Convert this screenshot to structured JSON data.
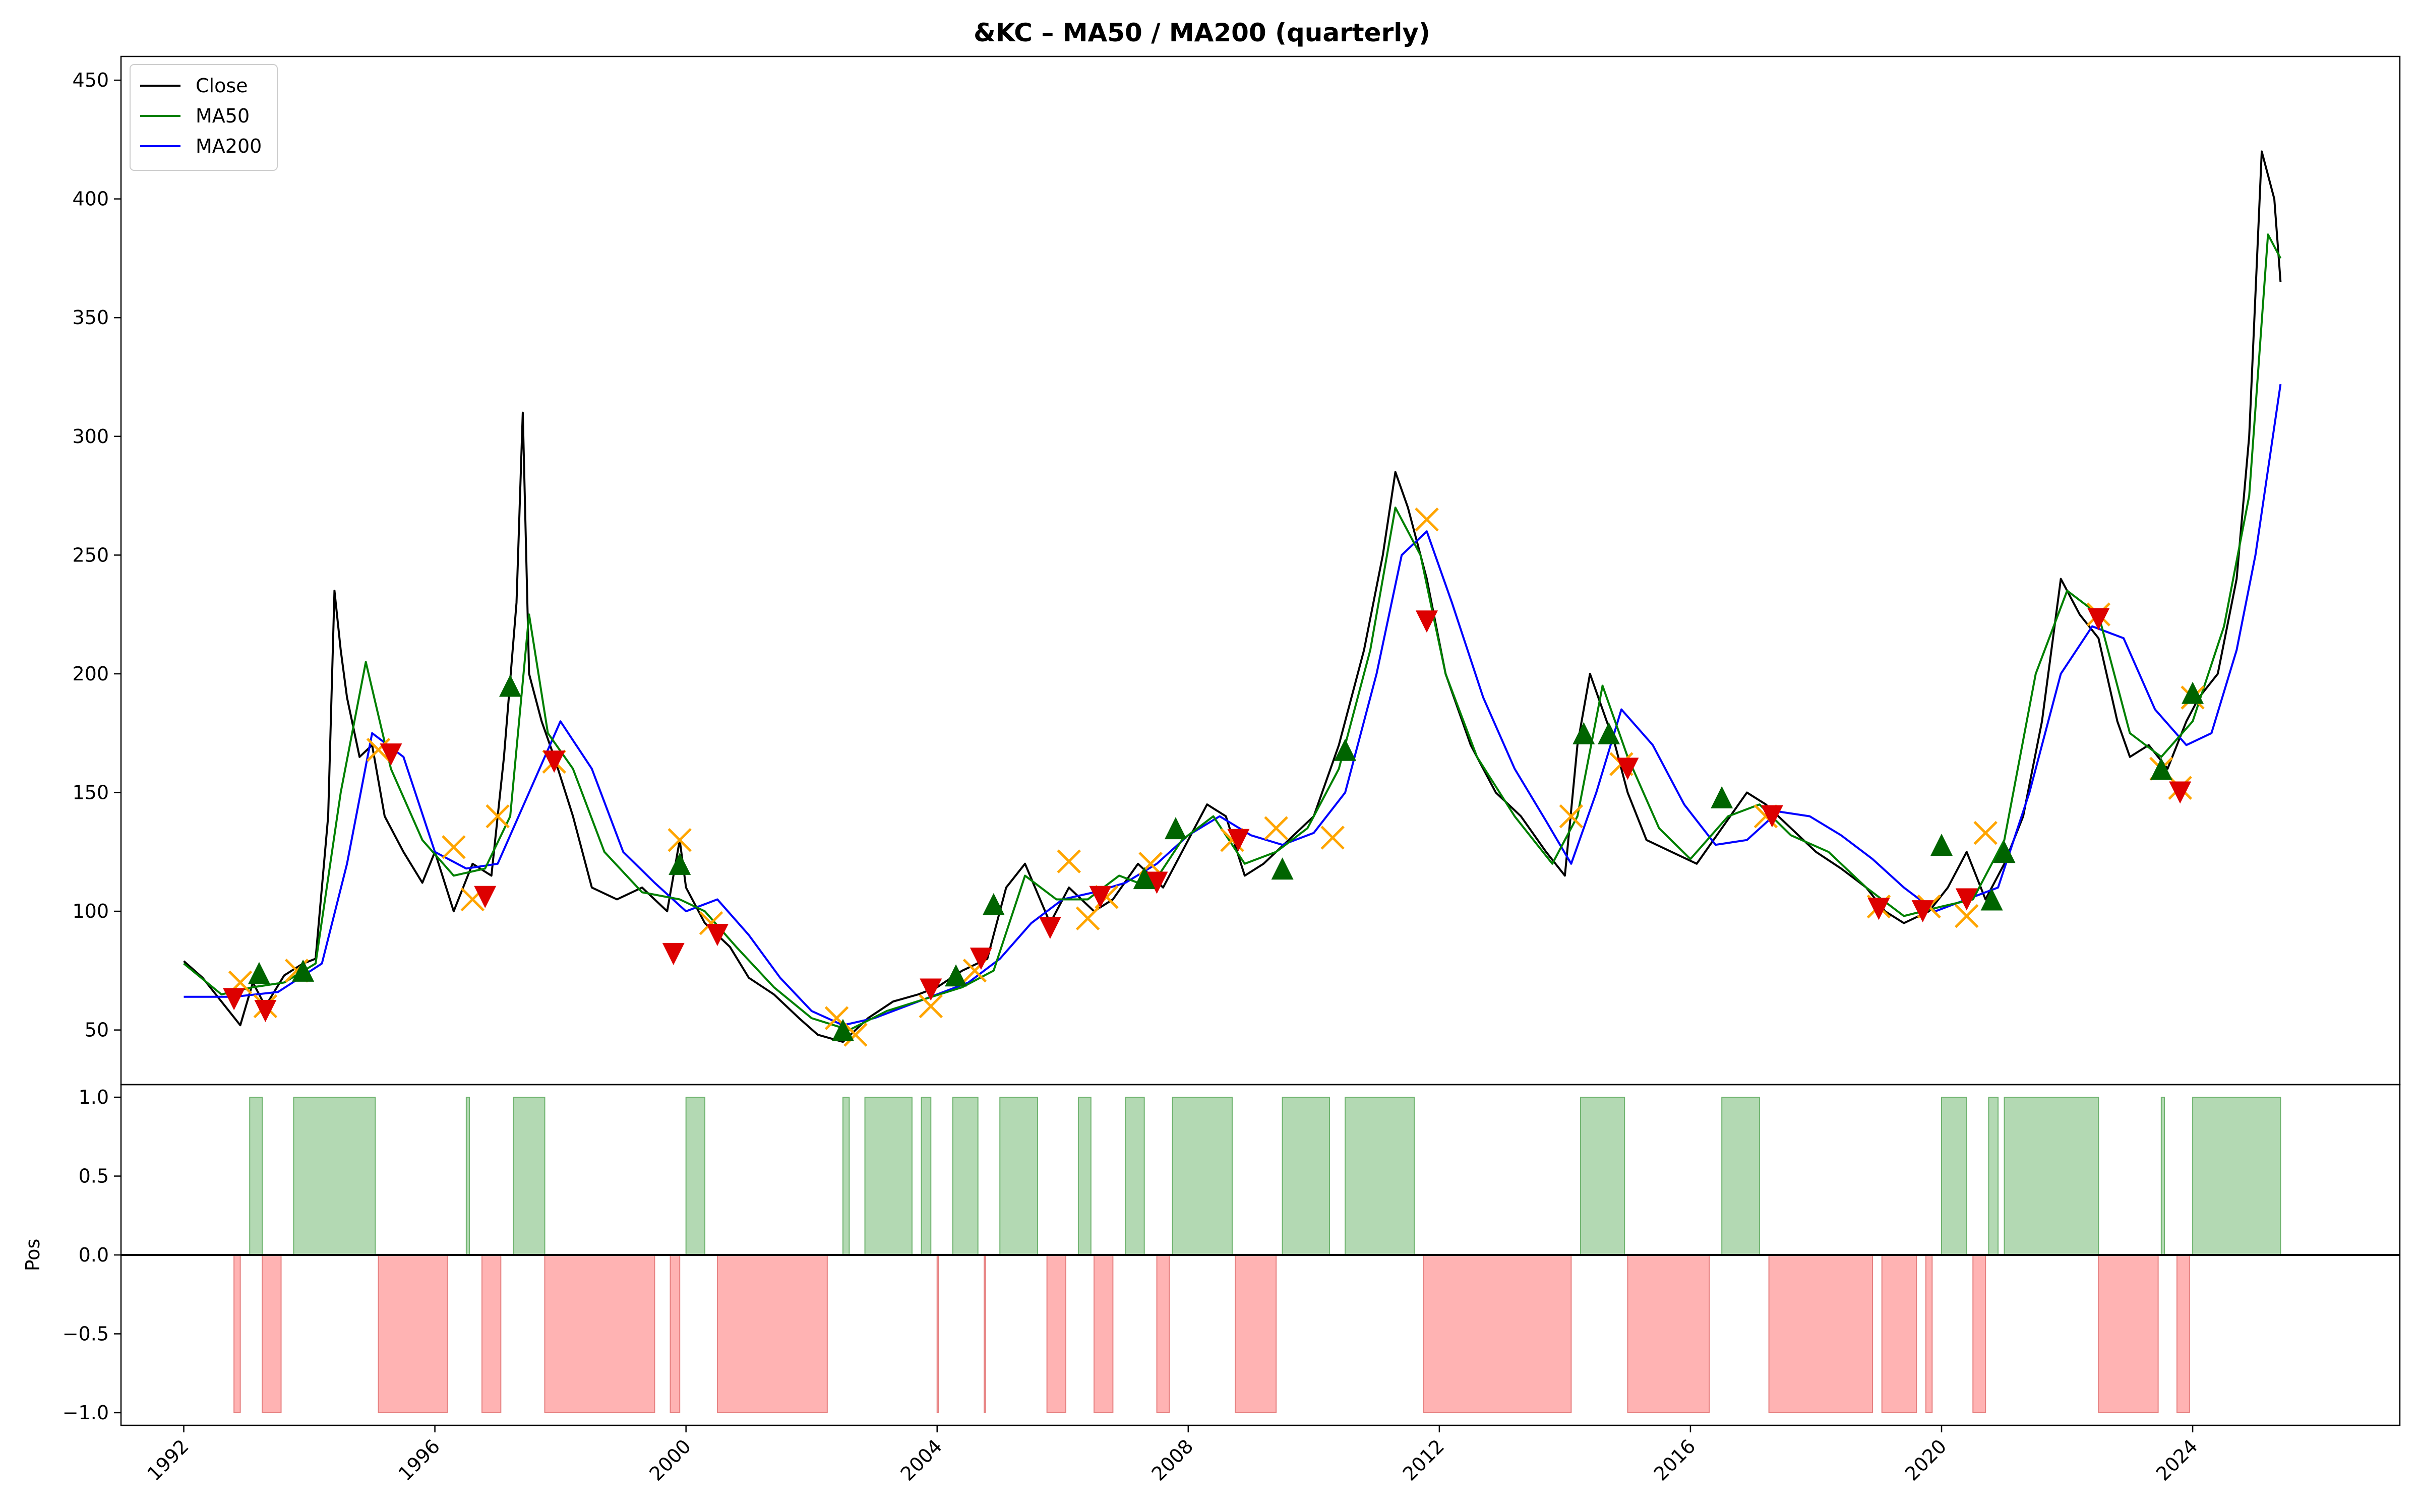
{
  "chart_data": [
    {
      "type": "line",
      "title": "&KC – MA50 / MA200 (quarterly)",
      "xlabel": "",
      "ylabel": "",
      "xlim": [
        1991.0,
        2027.3
      ],
      "ylim": [
        27,
        460
      ],
      "yticks": [
        50,
        100,
        150,
        200,
        250,
        300,
        350,
        400,
        450
      ],
      "xticks": [
        1992,
        1996,
        2000,
        2004,
        2008,
        2012,
        2016,
        2020,
        2024
      ],
      "legend": {
        "placement": "top-left",
        "entries": [
          "Close",
          "MA50",
          "MA200"
        ]
      },
      "colors": {
        "close": "#000000",
        "ma50": "#008000",
        "ma200": "#0000ff",
        "buy": "#006400",
        "sell": "#dd0000",
        "exit": "#ffa500"
      },
      "series": [
        {
          "name": "Close",
          "x": [
            1992.0,
            1992.3,
            1992.6,
            1992.9,
            1993.1,
            1993.3,
            1993.6,
            1993.9,
            1994.1,
            1994.3,
            1994.4,
            1994.5,
            1994.6,
            1994.8,
            1995.0,
            1995.2,
            1995.5,
            1995.8,
            1996.0,
            1996.3,
            1996.6,
            1996.9,
            1997.1,
            1997.3,
            1997.4,
            1997.5,
            1997.7,
            1997.9,
            1998.2,
            1998.5,
            1998.9,
            1999.3,
            1999.7,
            1999.9,
            2000.0,
            2000.3,
            2000.7,
            2001.0,
            2001.4,
            2001.8,
            2002.1,
            2002.5,
            2002.9,
            2003.3,
            2003.7,
            2004.0,
            2004.4,
            2004.8,
            2005.1,
            2005.4,
            2005.8,
            2006.1,
            2006.5,
            2006.8,
            2007.2,
            2007.6,
            2008.0,
            2008.3,
            2008.6,
            2008.9,
            2009.2,
            2009.6,
            2010.0,
            2010.4,
            2010.8,
            2011.1,
            2011.3,
            2011.5,
            2011.8,
            2012.1,
            2012.5,
            2012.9,
            2013.3,
            2013.7,
            2014.0,
            2014.2,
            2014.4,
            2014.6,
            2014.8,
            2015.0,
            2015.3,
            2015.7,
            2016.1,
            2016.5,
            2016.9,
            2017.2,
            2017.6,
            2018.0,
            2018.4,
            2018.8,
            2019.1,
            2019.4,
            2019.8,
            2020.1,
            2020.4,
            2020.7,
            2021.0,
            2021.3,
            2021.6,
            2021.9,
            2022.2,
            2022.5,
            2022.8,
            2023.0,
            2023.3,
            2023.6,
            2023.9,
            2024.1,
            2024.4,
            2024.7,
            2024.9,
            2025.1,
            2025.3,
            2025.4
          ],
          "y": [
            79,
            72,
            62,
            52,
            70,
            60,
            73,
            78,
            80,
            140,
            235,
            210,
            190,
            165,
            170,
            140,
            125,
            112,
            125,
            100,
            120,
            115,
            165,
            230,
            310,
            200,
            180,
            165,
            140,
            110,
            105,
            110,
            100,
            130,
            110,
            95,
            85,
            72,
            65,
            55,
            48,
            45,
            55,
            62,
            65,
            68,
            75,
            80,
            110,
            120,
            95,
            110,
            100,
            105,
            120,
            110,
            130,
            145,
            140,
            115,
            120,
            130,
            140,
            170,
            210,
            250,
            285,
            270,
            240,
            200,
            170,
            150,
            140,
            125,
            115,
            170,
            200,
            185,
            170,
            150,
            130,
            125,
            120,
            135,
            150,
            145,
            135,
            125,
            118,
            110,
            100,
            95,
            100,
            110,
            125,
            105,
            120,
            140,
            180,
            240,
            225,
            215,
            180,
            165,
            170,
            160,
            180,
            190,
            200,
            240,
            300,
            420,
            400,
            365
          ]
        },
        {
          "name": "MA50",
          "x": [
            1992.0,
            1992.6,
            1993.1,
            1993.6,
            1994.1,
            1994.5,
            1994.9,
            1995.3,
            1995.8,
            1996.3,
            1996.8,
            1997.2,
            1997.5,
            1997.8,
            1998.2,
            1998.7,
            1999.3,
            1999.9,
            2000.3,
            2000.8,
            2001.4,
            2002.0,
            2002.6,
            2003.2,
            2003.8,
            2004.4,
            2004.9,
            2005.4,
            2005.9,
            2006.4,
            2006.9,
            2007.4,
            2007.9,
            2008.4,
            2008.9,
            2009.4,
            2009.9,
            2010.4,
            2010.9,
            2011.3,
            2011.7,
            2012.1,
            2012.6,
            2013.2,
            2013.8,
            2014.2,
            2014.6,
            2015.0,
            2015.5,
            2016.0,
            2016.6,
            2017.1,
            2017.6,
            2018.2,
            2018.8,
            2019.4,
            2020.0,
            2020.5,
            2021.0,
            2021.5,
            2022.0,
            2022.5,
            2023.0,
            2023.5,
            2024.0,
            2024.5,
            2024.9,
            2025.2,
            2025.4
          ],
          "y": [
            78,
            65,
            68,
            70,
            78,
            150,
            205,
            160,
            130,
            115,
            118,
            140,
            225,
            175,
            160,
            125,
            108,
            105,
            100,
            85,
            68,
            55,
            50,
            58,
            63,
            68,
            75,
            115,
            105,
            105,
            115,
            110,
            130,
            140,
            120,
            125,
            135,
            160,
            210,
            270,
            250,
            200,
            165,
            140,
            120,
            140,
            195,
            165,
            135,
            122,
            140,
            145,
            132,
            125,
            110,
            98,
            102,
            105,
            130,
            200,
            235,
            225,
            175,
            165,
            180,
            220,
            275,
            385,
            375
          ]
        },
        {
          "name": "MA200",
          "x": [
            1992.0,
            1992.8,
            1993.5,
            1994.2,
            1994.6,
            1995.0,
            1995.5,
            1996.0,
            1996.5,
            1997.0,
            1997.5,
            1998.0,
            1998.5,
            1999.0,
            1999.5,
            2000.0,
            2000.5,
            2001.0,
            2001.5,
            2002.0,
            2002.5,
            2003.0,
            2003.5,
            2004.0,
            2004.5,
            2005.0,
            2005.5,
            2006.0,
            2006.5,
            2007.0,
            2007.5,
            2008.0,
            2008.5,
            2009.0,
            2009.5,
            2010.0,
            2010.5,
            2011.0,
            2011.4,
            2011.8,
            2012.2,
            2012.7,
            2013.2,
            2013.7,
            2014.1,
            2014.5,
            2014.9,
            2015.4,
            2015.9,
            2016.4,
            2016.9,
            2017.4,
            2017.9,
            2018.4,
            2018.9,
            2019.4,
            2019.9,
            2020.4,
            2020.9,
            2021.4,
            2021.9,
            2022.4,
            2022.9,
            2023.4,
            2023.9,
            2024.3,
            2024.7,
            2025.0,
            2025.4
          ],
          "y": [
            64,
            64,
            66,
            78,
            120,
            175,
            165,
            125,
            118,
            120,
            150,
            180,
            160,
            125,
            112,
            100,
            105,
            90,
            72,
            58,
            52,
            55,
            60,
            65,
            70,
            80,
            95,
            105,
            108,
            112,
            120,
            132,
            140,
            132,
            128,
            133,
            150,
            200,
            250,
            260,
            230,
            190,
            160,
            138,
            120,
            150,
            185,
            170,
            145,
            128,
            130,
            142,
            140,
            132,
            122,
            110,
            100,
            105,
            110,
            150,
            200,
            220,
            215,
            185,
            170,
            175,
            210,
            250,
            322
          ]
        }
      ],
      "markers": {
        "buy": {
          "x": [
            1993.2,
            1993.9,
            1997.2,
            1999.9,
            2002.5,
            2004.3,
            2004.9,
            2007.3,
            2007.8,
            2009.5,
            2010.5,
            2014.3,
            2014.7,
            2016.5,
            2020.0,
            2020.8,
            2021.0,
            2023.5,
            2024.0
          ],
          "y": [
            74,
            75,
            195,
            120,
            50,
            73,
            103,
            114,
            135,
            118,
            168,
            175,
            175,
            148,
            128,
            105,
            125,
            160,
            192
          ]
        },
        "sell": {
          "x": [
            1992.8,
            1993.3,
            1995.3,
            1996.8,
            1997.9,
            1999.8,
            2000.5,
            2003.9,
            2004.7,
            2005.8,
            2006.6,
            2007.5,
            2008.8,
            2011.8,
            2015.0,
            2017.3,
            2019.0,
            2019.7,
            2020.4,
            2022.5,
            2023.8
          ],
          "y": [
            63,
            58,
            166,
            106,
            163,
            82,
            90,
            67,
            80,
            93,
            106,
            112,
            130,
            222,
            160,
            140,
            101,
            100,
            105,
            223,
            150
          ]
        },
        "exit": {
          "x": [
            1992.9,
            1993.3,
            1993.8,
            1995.1,
            1996.3,
            1996.6,
            1997.0,
            1997.9,
            1999.9,
            2000.4,
            2002.4,
            2002.7,
            2003.9,
            2004.6,
            2006.1,
            2006.4,
            2006.7,
            2007.4,
            2008.7,
            2009.4,
            2010.3,
            2011.8,
            2014.1,
            2014.9,
            2017.2,
            2019.0,
            2019.8,
            2020.4,
            2020.7,
            2022.5,
            2023.5,
            2023.8,
            2024.0
          ],
          "y": [
            70,
            60,
            75,
            168,
            127,
            105,
            140,
            163,
            130,
            95,
            55,
            48,
            60,
            75,
            121,
            97,
            106,
            120,
            130,
            135,
            131,
            265,
            140,
            162,
            140,
            102,
            102,
            98,
            133,
            225,
            160,
            152,
            190
          ]
        }
      }
    },
    {
      "type": "area",
      "ylabel": "Pos",
      "ylim": [
        -1.08,
        1.08
      ],
      "yticks": [
        "1.0",
        "0.5",
        "0.0",
        "−0.5",
        "−1.0"
      ],
      "ytick_values": [
        1.0,
        0.5,
        0.0,
        -0.5,
        -1.0
      ],
      "xticks": [
        "1992",
        "1996",
        "2000",
        "2004",
        "2008",
        "2012",
        "2016",
        "2020",
        "2024"
      ],
      "xtick_values": [
        1992,
        1996,
        2000,
        2004,
        2008,
        2012,
        2016,
        2020,
        2024
      ],
      "colors": {
        "long": "#b3d9b3",
        "long_edge": "#6fb36f",
        "short": "#ffb3b3",
        "short_edge": "#e68080"
      },
      "long_periods": [
        [
          1993.05,
          1993.25
        ],
        [
          1993.75,
          1995.05
        ],
        [
          1996.5,
          1996.55
        ],
        [
          1997.25,
          1997.75
        ],
        [
          2000.0,
          2000.3
        ],
        [
          2002.5,
          2002.6
        ],
        [
          2002.85,
          2003.6
        ],
        [
          2003.75,
          2003.9
        ],
        [
          2004.25,
          2004.65
        ],
        [
          2005.0,
          2005.6
        ],
        [
          2006.25,
          2006.45
        ],
        [
          2007.0,
          2007.3
        ],
        [
          2007.75,
          2008.7
        ],
        [
          2009.5,
          2010.25
        ],
        [
          2010.5,
          2011.6
        ],
        [
          2014.25,
          2014.95
        ],
        [
          2016.5,
          2017.1
        ],
        [
          2020.0,
          2020.4
        ],
        [
          2020.75,
          2020.9
        ],
        [
          2021.0,
          2022.5
        ],
        [
          2023.5,
          2023.55
        ],
        [
          2024.0,
          2025.4
        ]
      ],
      "short_periods": [
        [
          1992.8,
          1992.9
        ],
        [
          1993.25,
          1993.55
        ],
        [
          1995.1,
          1996.2
        ],
        [
          1996.75,
          1997.05
        ],
        [
          1997.75,
          1999.5
        ],
        [
          1999.75,
          1999.9
        ],
        [
          2000.5,
          2002.25
        ],
        [
          2004.0,
          2004.02
        ],
        [
          2004.75,
          2004.77
        ],
        [
          2005.75,
          2006.05
        ],
        [
          2006.5,
          2006.8
        ],
        [
          2007.5,
          2007.7
        ],
        [
          2008.75,
          2009.4
        ],
        [
          2011.75,
          2014.1
        ],
        [
          2015.0,
          2016.3
        ],
        [
          2017.25,
          2018.9
        ],
        [
          2019.05,
          2019.6
        ],
        [
          2019.75,
          2019.85
        ],
        [
          2020.5,
          2020.7
        ],
        [
          2022.5,
          2023.45
        ],
        [
          2023.75,
          2023.95
        ]
      ]
    }
  ]
}
